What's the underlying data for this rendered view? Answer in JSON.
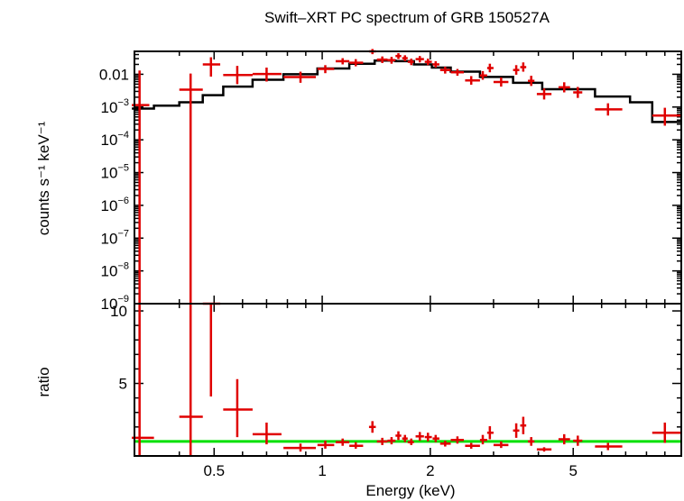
{
  "chart_data": [
    {
      "type": "scatter",
      "panel": "spectrum",
      "title": "Swift–XRT PC spectrum of GRB 150527A",
      "xlabel": "Energy (keV)",
      "ylabel": "counts s⁻¹ keV⁻¹",
      "xscale": "log",
      "yscale": "log",
      "xlim": [
        0.3,
        10
      ],
      "ylim": [
        1e-09,
        0.05
      ],
      "ytick_labels": [
        {
          "value": 0.01,
          "label": "0.01"
        },
        {
          "value": 0.001,
          "base": "10",
          "exp": "−3"
        },
        {
          "value": 0.0001,
          "base": "10",
          "exp": "−4"
        },
        {
          "value": 1e-05,
          "base": "10",
          "exp": "−5"
        },
        {
          "value": 1e-06,
          "base": "10",
          "exp": "−6"
        },
        {
          "value": 1e-07,
          "base": "10",
          "exp": "−7"
        },
        {
          "value": 1e-08,
          "base": "10",
          "exp": "−8"
        },
        {
          "value": 1e-09,
          "base": "10",
          "exp": "−9"
        }
      ],
      "series": [
        {
          "color": "#e00000",
          "points": [
            {
              "x": 0.31,
              "xlo": 0.295,
              "xhi": 0.33,
              "y": 0.00115,
              "ylo": 1e-09,
              "yhi": 0.013
            },
            {
              "x": 0.43,
              "xlo": 0.4,
              "xhi": 0.465,
              "y": 0.0034,
              "ylo": 1e-09,
              "yhi": 0.0105
            },
            {
              "x": 0.49,
              "xlo": 0.465,
              "xhi": 0.52,
              "y": 0.02,
              "ylo": 0.0085,
              "yhi": 0.033
            },
            {
              "x": 0.58,
              "xlo": 0.53,
              "xhi": 0.64,
              "y": 0.0095,
              "ylo": 0.005,
              "yhi": 0.018
            },
            {
              "x": 0.7,
              "xlo": 0.64,
              "xhi": 0.77,
              "y": 0.0102,
              "ylo": 0.006,
              "yhi": 0.016
            },
            {
              "x": 0.87,
              "xlo": 0.78,
              "xhi": 0.96,
              "y": 0.0082,
              "ylo": 0.0055,
              "yhi": 0.012
            },
            {
              "x": 1.02,
              "xlo": 0.97,
              "xhi": 1.08,
              "y": 0.0145,
              "ylo": 0.0108,
              "yhi": 0.019
            },
            {
              "x": 1.14,
              "xlo": 1.09,
              "xhi": 1.19,
              "y": 0.025,
              "ylo": 0.02,
              "yhi": 0.031
            },
            {
              "x": 1.24,
              "xlo": 1.19,
              "xhi": 1.3,
              "y": 0.0225,
              "ylo": 0.0175,
              "yhi": 0.029
            },
            {
              "x": 1.38,
              "xlo": 1.35,
              "xhi": 1.41,
              "y": 0.05,
              "ylo": 0.041,
              "yhi": 0.059
            },
            {
              "x": 1.47,
              "xlo": 1.42,
              "xhi": 1.52,
              "y": 0.028,
              "ylo": 0.022,
              "yhi": 0.035
            },
            {
              "x": 1.56,
              "xlo": 1.52,
              "xhi": 1.6,
              "y": 0.027,
              "ylo": 0.021,
              "yhi": 0.034
            },
            {
              "x": 1.63,
              "xlo": 1.6,
              "xhi": 1.66,
              "y": 0.036,
              "ylo": 0.029,
              "yhi": 0.044
            },
            {
              "x": 1.7,
              "xlo": 1.67,
              "xhi": 1.73,
              "y": 0.031,
              "ylo": 0.025,
              "yhi": 0.038
            },
            {
              "x": 1.77,
              "xlo": 1.73,
              "xhi": 1.8,
              "y": 0.024,
              "ylo": 0.019,
              "yhi": 0.03
            },
            {
              "x": 1.87,
              "xlo": 1.82,
              "xhi": 1.92,
              "y": 0.029,
              "ylo": 0.023,
              "yhi": 0.036
            },
            {
              "x": 1.97,
              "xlo": 1.93,
              "xhi": 2.02,
              "y": 0.024,
              "ylo": 0.019,
              "yhi": 0.03
            },
            {
              "x": 2.07,
              "xlo": 2.03,
              "xhi": 2.12,
              "y": 0.02,
              "ylo": 0.016,
              "yhi": 0.025
            },
            {
              "x": 2.2,
              "xlo": 2.13,
              "xhi": 2.28,
              "y": 0.0135,
              "ylo": 0.0105,
              "yhi": 0.017
            },
            {
              "x": 2.38,
              "xlo": 2.28,
              "xhi": 2.48,
              "y": 0.0115,
              "ylo": 0.009,
              "yhi": 0.0145
            },
            {
              "x": 2.6,
              "xlo": 2.5,
              "xhi": 2.75,
              "y": 0.0065,
              "ylo": 0.0048,
              "yhi": 0.0088
            },
            {
              "x": 2.8,
              "xlo": 2.75,
              "xhi": 2.88,
              "y": 0.0092,
              "ylo": 0.0068,
              "yhi": 0.0125
            },
            {
              "x": 2.93,
              "xlo": 2.88,
              "xhi": 3.0,
              "y": 0.0155,
              "ylo": 0.0115,
              "yhi": 0.021
            },
            {
              "x": 3.15,
              "xlo": 3.0,
              "xhi": 3.3,
              "y": 0.0058,
              "ylo": 0.0042,
              "yhi": 0.008
            },
            {
              "x": 3.47,
              "xlo": 3.4,
              "xhi": 3.54,
              "y": 0.0135,
              "ylo": 0.0097,
              "yhi": 0.019
            },
            {
              "x": 3.63,
              "xlo": 3.56,
              "xhi": 3.7,
              "y": 0.0165,
              "ylo": 0.012,
              "yhi": 0.023
            },
            {
              "x": 3.82,
              "xlo": 3.74,
              "xhi": 3.9,
              "y": 0.0063,
              "ylo": 0.0044,
              "yhi": 0.009
            },
            {
              "x": 4.15,
              "xlo": 3.96,
              "xhi": 4.35,
              "y": 0.0025,
              "ylo": 0.0017,
              "yhi": 0.0037
            },
            {
              "x": 4.72,
              "xlo": 4.55,
              "xhi": 4.9,
              "y": 0.004,
              "ylo": 0.0028,
              "yhi": 0.0057
            },
            {
              "x": 5.15,
              "xlo": 5.0,
              "xhi": 5.3,
              "y": 0.0028,
              "ylo": 0.0019,
              "yhi": 0.0041
            },
            {
              "x": 6.25,
              "xlo": 5.75,
              "xhi": 6.85,
              "y": 0.00085,
              "ylo": 0.00055,
              "yhi": 0.0013
            },
            {
              "x": 9.0,
              "xlo": 8.3,
              "xhi": 9.95,
              "y": 0.00055,
              "ylo": 0.00027,
              "yhi": 0.00095
            }
          ]
        },
        {
          "color": "#000000",
          "style": "step",
          "edges": [
            0.295,
            0.34,
            0.4,
            0.465,
            0.53,
            0.64,
            0.78,
            0.97,
            1.19,
            1.4,
            1.6,
            1.8,
            2.02,
            2.28,
            2.75,
            3.4,
            4.1,
            5.75,
            7.2,
            8.3,
            9.95
          ],
          "values": [
            0.0009,
            0.0011,
            0.0014,
            0.0023,
            0.0042,
            0.0068,
            0.01,
            0.015,
            0.021,
            0.026,
            0.025,
            0.02,
            0.016,
            0.012,
            0.0083,
            0.0055,
            0.0035,
            0.0021,
            0.0014,
            0.00035
          ]
        }
      ]
    },
    {
      "type": "scatter",
      "panel": "ratio",
      "xlabel": "Energy (keV)",
      "ylabel": "ratio",
      "xscale": "log",
      "xlim": [
        0.3,
        10
      ],
      "ylim": [
        0,
        10.5
      ],
      "xtick_labels": [
        {
          "value": 0.5,
          "label": "0.5"
        },
        {
          "value": 1,
          "label": "1"
        },
        {
          "value": 2,
          "label": "2"
        },
        {
          "value": 5,
          "label": "5"
        }
      ],
      "ytick_labels": [
        {
          "value": 5,
          "label": "5"
        },
        {
          "value": 10,
          "label": "10"
        }
      ],
      "reference_line": {
        "y": 1,
        "color": "#00e000"
      },
      "series": [
        {
          "color": "#e00000",
          "points": [
            {
              "x": 0.31,
              "xlo": 0.295,
              "xhi": 0.34,
              "y": 1.25,
              "ylo": 0,
              "yhi": 10.5
            },
            {
              "x": 0.43,
              "xlo": 0.4,
              "xhi": 0.465,
              "y": 2.7,
              "ylo": 0,
              "yhi": 10.5
            },
            {
              "x": 0.49,
              "xlo": 0.465,
              "xhi": 0.52,
              "y": 10.5,
              "ylo": 4.1,
              "yhi": 10.5
            },
            {
              "x": 0.58,
              "xlo": 0.53,
              "xhi": 0.64,
              "y": 3.2,
              "ylo": 1.3,
              "yhi": 5.3
            },
            {
              "x": 0.7,
              "xlo": 0.64,
              "xhi": 0.77,
              "y": 1.5,
              "ylo": 0.8,
              "yhi": 2.3
            },
            {
              "x": 0.87,
              "xlo": 0.78,
              "xhi": 0.96,
              "y": 0.55,
              "ylo": 0.3,
              "yhi": 0.85
            },
            {
              "x": 1.02,
              "xlo": 0.97,
              "xhi": 1.08,
              "y": 0.75,
              "ylo": 0.5,
              "yhi": 1.05
            },
            {
              "x": 1.14,
              "xlo": 1.09,
              "xhi": 1.19,
              "y": 0.95,
              "ylo": 0.7,
              "yhi": 1.2
            },
            {
              "x": 1.24,
              "xlo": 1.19,
              "xhi": 1.3,
              "y": 0.7,
              "ylo": 0.5,
              "yhi": 0.95
            },
            {
              "x": 1.38,
              "xlo": 1.35,
              "xhi": 1.41,
              "y": 2.0,
              "ylo": 1.6,
              "yhi": 2.4
            },
            {
              "x": 1.47,
              "xlo": 1.42,
              "xhi": 1.52,
              "y": 1.0,
              "ylo": 0.75,
              "yhi": 1.25
            },
            {
              "x": 1.56,
              "xlo": 1.52,
              "xhi": 1.6,
              "y": 1.05,
              "ylo": 0.8,
              "yhi": 1.3
            },
            {
              "x": 1.63,
              "xlo": 1.6,
              "xhi": 1.66,
              "y": 1.4,
              "ylo": 1.1,
              "yhi": 1.7
            },
            {
              "x": 1.7,
              "xlo": 1.67,
              "xhi": 1.73,
              "y": 1.2,
              "ylo": 0.95,
              "yhi": 1.45
            },
            {
              "x": 1.77,
              "xlo": 1.73,
              "xhi": 1.8,
              "y": 0.95,
              "ylo": 0.75,
              "yhi": 1.2
            },
            {
              "x": 1.87,
              "xlo": 1.82,
              "xhi": 1.92,
              "y": 1.35,
              "ylo": 1.05,
              "yhi": 1.65
            },
            {
              "x": 1.97,
              "xlo": 1.93,
              "xhi": 2.02,
              "y": 1.3,
              "ylo": 1.0,
              "yhi": 1.6
            },
            {
              "x": 2.07,
              "xlo": 2.03,
              "xhi": 2.12,
              "y": 1.2,
              "ylo": 0.95,
              "yhi": 1.45
            },
            {
              "x": 2.2,
              "xlo": 2.13,
              "xhi": 2.28,
              "y": 0.85,
              "ylo": 0.65,
              "yhi": 1.05
            },
            {
              "x": 2.38,
              "xlo": 2.28,
              "xhi": 2.48,
              "y": 1.1,
              "ylo": 0.85,
              "yhi": 1.35
            },
            {
              "x": 2.6,
              "xlo": 2.5,
              "xhi": 2.75,
              "y": 0.7,
              "ylo": 0.5,
              "yhi": 0.9
            },
            {
              "x": 2.8,
              "xlo": 2.75,
              "xhi": 2.88,
              "y": 1.1,
              "ylo": 0.8,
              "yhi": 1.45
            },
            {
              "x": 2.93,
              "xlo": 2.88,
              "xhi": 3.0,
              "y": 1.6,
              "ylo": 1.15,
              "yhi": 2.05
            },
            {
              "x": 3.15,
              "xlo": 3.0,
              "xhi": 3.3,
              "y": 0.75,
              "ylo": 0.55,
              "yhi": 1.0
            },
            {
              "x": 3.47,
              "xlo": 3.4,
              "xhi": 3.54,
              "y": 1.75,
              "ylo": 1.25,
              "yhi": 2.25
            },
            {
              "x": 3.63,
              "xlo": 3.56,
              "xhi": 3.7,
              "y": 2.1,
              "ylo": 1.5,
              "yhi": 2.7
            },
            {
              "x": 3.82,
              "xlo": 3.74,
              "xhi": 3.9,
              "y": 1.0,
              "ylo": 0.7,
              "yhi": 1.3
            },
            {
              "x": 4.15,
              "xlo": 3.96,
              "xhi": 4.35,
              "y": 0.45,
              "ylo": 0.3,
              "yhi": 0.6
            },
            {
              "x": 4.72,
              "xlo": 4.55,
              "xhi": 4.9,
              "y": 1.15,
              "ylo": 0.8,
              "yhi": 1.5
            },
            {
              "x": 5.15,
              "xlo": 5.0,
              "xhi": 5.3,
              "y": 1.05,
              "ylo": 0.7,
              "yhi": 1.4
            },
            {
              "x": 6.25,
              "xlo": 5.75,
              "xhi": 6.85,
              "y": 0.65,
              "ylo": 0.4,
              "yhi": 0.9
            },
            {
              "x": 9.0,
              "xlo": 8.3,
              "xhi": 9.95,
              "y": 1.6,
              "ylo": 0.9,
              "yhi": 2.3
            }
          ]
        }
      ]
    }
  ]
}
